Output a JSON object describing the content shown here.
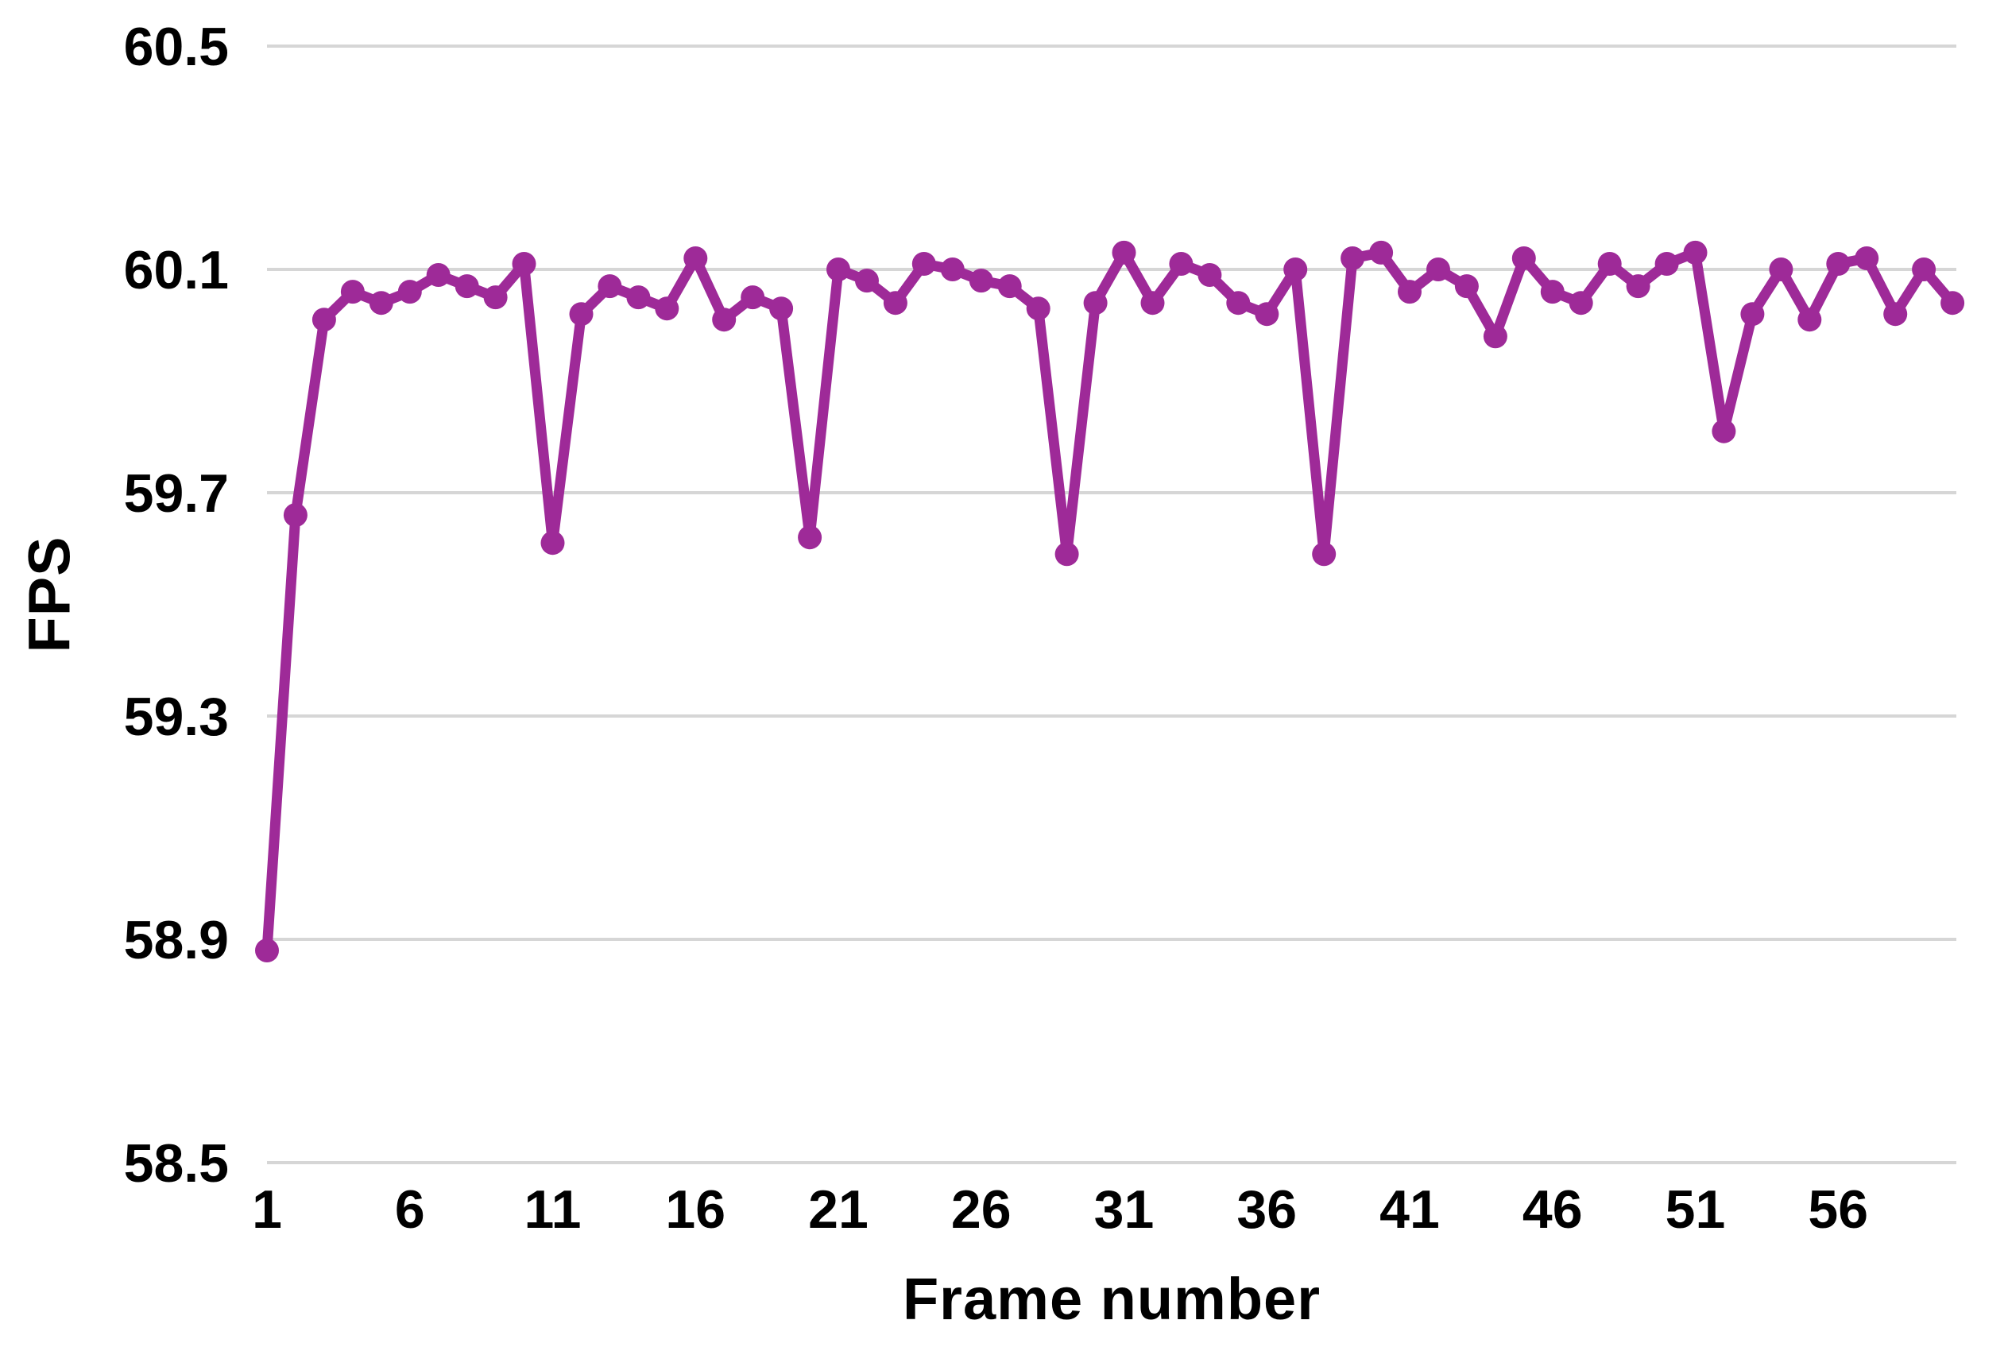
{
  "chart_data": {
    "type": "line",
    "title": "",
    "xlabel": "Frame number",
    "ylabel": "FPS",
    "x_axis": {
      "start_frame": 1,
      "end_frame": 60,
      "step": 1
    },
    "xticks": [
      1,
      6,
      11,
      16,
      21,
      26,
      31,
      36,
      41,
      46,
      51,
      56
    ],
    "yticks": [
      {
        "label": "60.5",
        "value": 60.5
      },
      {
        "label": "60.1",
        "value": 60.1
      },
      {
        "label": "59.7",
        "value": 59.7
      },
      {
        "label": "59.3",
        "value": 59.3
      },
      {
        "label": "58.9",
        "value": 58.9
      },
      {
        "label": "58.5",
        "value": 58.5
      }
    ],
    "ylim": [
      58.5,
      60.5
    ],
    "grid": "horizontal",
    "legend": "none",
    "series": [
      {
        "name": "FPS",
        "color": "#9E2A98",
        "marker": "circle",
        "frames": [
          1,
          2,
          3,
          4,
          5,
          6,
          7,
          8,
          9,
          10,
          11,
          12,
          13,
          14,
          15,
          16,
          17,
          18,
          19,
          20,
          21,
          22,
          23,
          24,
          25,
          26,
          27,
          28,
          29,
          30,
          31,
          32,
          33,
          34,
          35,
          36,
          37,
          38,
          39,
          40,
          41,
          42,
          43,
          44,
          45,
          46,
          47,
          48,
          49,
          50,
          51,
          52,
          53,
          54,
          55,
          56,
          57,
          58,
          59,
          60
        ],
        "values": [
          58.88,
          59.66,
          60.01,
          60.06,
          60.04,
          60.06,
          60.09,
          60.07,
          60.05,
          60.11,
          59.61,
          60.02,
          60.07,
          60.05,
          60.03,
          60.12,
          60.01,
          60.05,
          60.03,
          59.62,
          60.1,
          60.08,
          60.04,
          60.11,
          60.1,
          60.08,
          60.07,
          60.03,
          59.59,
          60.04,
          60.13,
          60.04,
          60.11,
          60.09,
          60.04,
          60.02,
          60.1,
          59.59,
          60.12,
          60.13,
          60.06,
          60.1,
          60.07,
          59.98,
          60.12,
          60.06,
          60.04,
          60.11,
          60.07,
          60.11,
          60.13,
          59.81,
          60.02,
          60.1,
          60.01,
          60.11,
          60.12,
          60.02,
          60.1,
          60.04
        ]
      }
    ],
    "colors": {
      "line": "#9E2A98",
      "gridline": "#D6D6D6",
      "text": "#000000",
      "background": "#FFFFFF"
    }
  }
}
